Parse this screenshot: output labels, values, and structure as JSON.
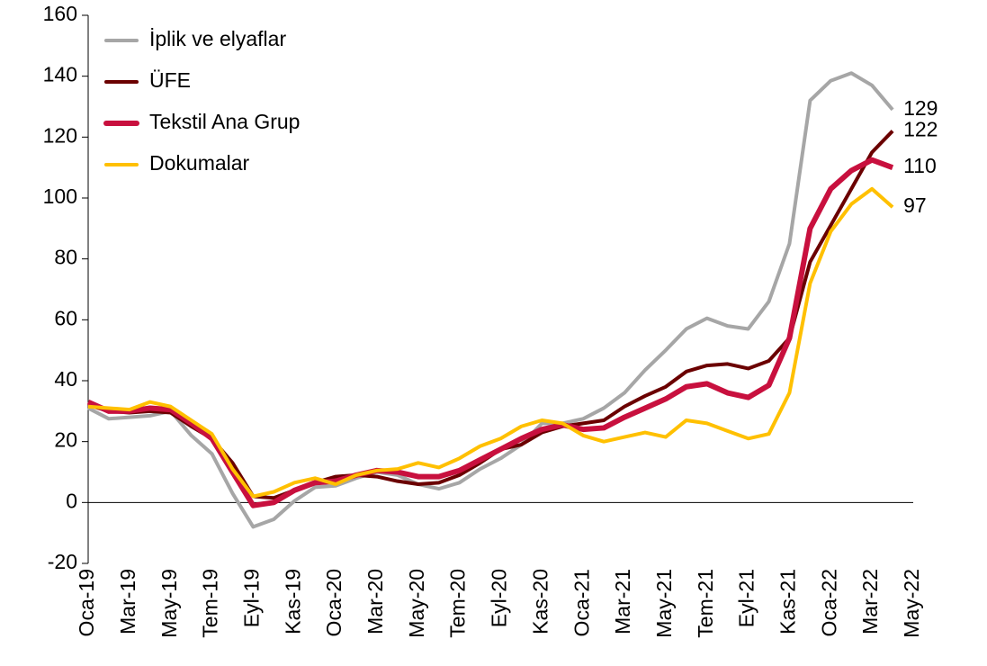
{
  "chart_data": {
    "type": "line",
    "categories": [
      "Oca-19",
      null,
      "Mar-19",
      null,
      "May-19",
      null,
      "Tem-19",
      null,
      "Eyl-19",
      null,
      "Kas-19",
      null,
      "Oca-20",
      null,
      "Mar-20",
      null,
      "May-20",
      null,
      "Tem-20",
      null,
      "Eyl-20",
      null,
      "Kas-20",
      null,
      "Oca-21",
      null,
      "Mar-21",
      null,
      "May-21",
      null,
      "Tem-21",
      null,
      "Eyl-21",
      null,
      "Kas-21",
      null,
      "Oca-22",
      null,
      "Mar-22",
      null,
      "May-22"
    ],
    "series": [
      {
        "name": "İplik ve elyaflar",
        "color": "#a6a6a6",
        "width": 4,
        "label": "129",
        "values": [
          31,
          27.5,
          28,
          28.5,
          30,
          22,
          16,
          3,
          -8,
          -5.5,
          0.5,
          5,
          5.5,
          8,
          10,
          9,
          6,
          4.5,
          6.5,
          11,
          14.5,
          19,
          26,
          26,
          27.5,
          31,
          36,
          43.5,
          50,
          57,
          60.5,
          58,
          57,
          66,
          85,
          132,
          138.5,
          141,
          137,
          129,
          null
        ]
      },
      {
        "name": "ÜFE",
        "color": "#6b0000",
        "width": 4,
        "label": "122",
        "values": [
          32,
          30,
          29.5,
          30,
          29.5,
          25,
          21,
          13,
          2,
          1.5,
          4,
          6.5,
          8.5,
          9,
          8.5,
          7,
          6,
          6.5,
          9,
          13,
          17.5,
          19,
          23,
          25,
          26,
          27,
          31.5,
          35,
          38,
          43,
          45,
          45.5,
          44,
          46.5,
          54,
          79,
          91,
          103,
          115,
          122,
          null
        ]
      },
      {
        "name": "Tekstil Ana Grup",
        "color": "#c8103e",
        "width": 6,
        "label": "110",
        "values": [
          33,
          30,
          30,
          31,
          30.5,
          26,
          21,
          10,
          -1,
          0,
          4,
          6.5,
          7,
          9,
          10.5,
          10,
          8.5,
          8.5,
          10.5,
          14,
          17.5,
          21,
          24,
          25.5,
          24,
          24.5,
          28,
          31,
          34,
          38,
          39,
          36,
          34.5,
          38.5,
          54,
          90,
          103,
          109,
          112.5,
          110,
          null
        ]
      },
      {
        "name": "Dokumalar",
        "color": "#ffc000",
        "width": 4,
        "label": "97",
        "values": [
          31.5,
          31,
          30.5,
          33,
          31.5,
          27,
          22.5,
          11,
          2,
          3.5,
          6.5,
          8,
          6,
          9,
          10.5,
          11,
          13,
          11.5,
          14.5,
          18.5,
          21,
          25,
          27,
          26,
          22,
          20,
          21.5,
          23,
          21.5,
          27,
          26,
          23.5,
          21,
          22.5,
          36,
          72,
          89,
          98,
          103,
          97,
          null
        ]
      }
    ],
    "ylim": [
      -20,
      160
    ],
    "yticks": [
      -20,
      0,
      20,
      40,
      60,
      80,
      100,
      120,
      140,
      160
    ],
    "legend": "upper-left"
  }
}
